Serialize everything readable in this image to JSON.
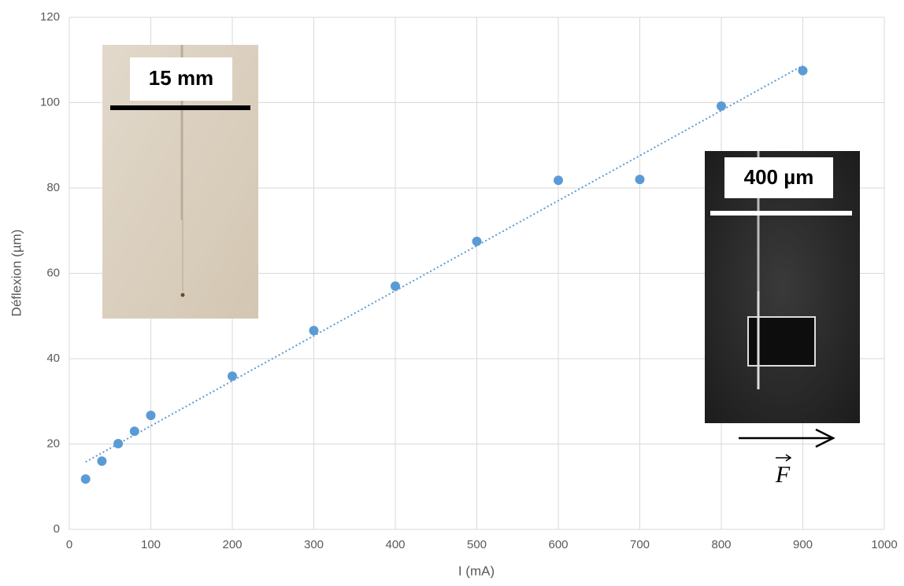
{
  "chart_data": {
    "type": "scatter",
    "x_label": "I (mA)",
    "y_label": "Déflexion (µm)",
    "x": [
      20,
      40,
      60,
      80,
      100,
      200,
      300,
      400,
      500,
      600,
      700,
      800,
      900
    ],
    "values": [
      11.8,
      16.0,
      20.1,
      23.0,
      26.7,
      35.9,
      46.6,
      57.0,
      67.5,
      81.8,
      82.0,
      99.2,
      107.5
    ],
    "color": "#5b9bd5",
    "trendline": {
      "x": [
        20,
        900
      ],
      "y": [
        15.8,
        108.7
      ],
      "color": "#5b9bd5",
      "style": "dotted"
    },
    "xlim": [
      0,
      1000
    ],
    "xticks": [
      0,
      100,
      200,
      300,
      400,
      500,
      600,
      700,
      800,
      900,
      1000
    ],
    "ylim": [
      0,
      120
    ],
    "yticks": [
      0,
      20,
      40,
      60,
      80,
      100,
      120
    ],
    "grid": true,
    "annotations": [
      "15 mm",
      "400 µm",
      "F"
    ]
  }
}
